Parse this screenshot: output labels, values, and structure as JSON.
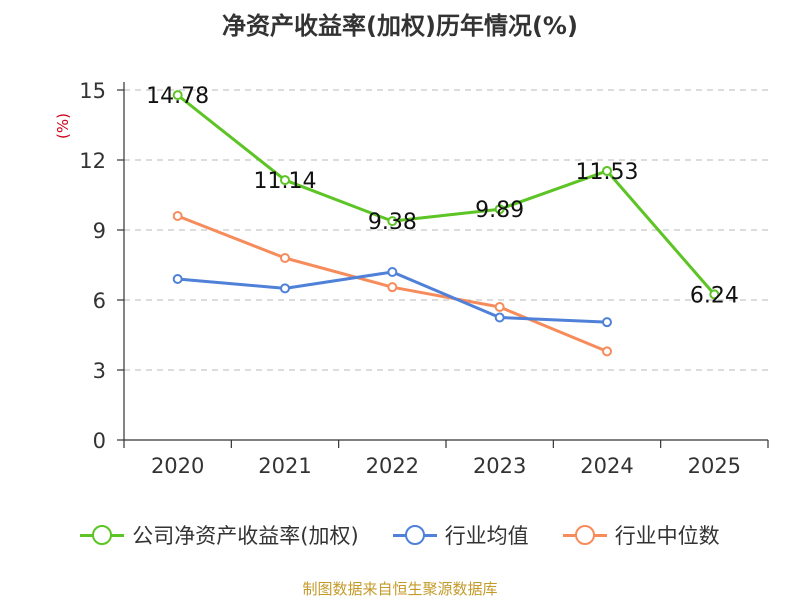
{
  "title": "净资产收益率(加权)历年情况(%)",
  "footer": "制图数据来自恒生聚源数据库",
  "chart_data": {
    "type": "line",
    "title": "净资产收益率(加权)历年情况(%)",
    "ylabel": "(%)",
    "xlabel": "",
    "ylim": [
      0,
      15
    ],
    "yticks": [
      0,
      3,
      6,
      9,
      12,
      15
    ],
    "categories": [
      "2020",
      "2021",
      "2022",
      "2023",
      "2024",
      "2025"
    ],
    "grid": true,
    "legend_position": "bottom",
    "series": [
      {
        "name": "公司净资产收益率(加权)",
        "color": "#5cc424",
        "values": [
          14.78,
          11.14,
          9.38,
          9.89,
          11.53,
          6.24
        ],
        "labels": [
          "14.78",
          "11.14",
          "9.38",
          "9.89",
          "11.53",
          "6.24"
        ]
      },
      {
        "name": "行业均值",
        "color": "#4f81d9",
        "values": [
          6.9,
          6.5,
          7.2,
          5.25,
          5.05,
          null
        ]
      },
      {
        "name": "行业中位数",
        "color": "#f68c5c",
        "values": [
          9.6,
          7.8,
          6.55,
          5.7,
          3.8,
          null
        ]
      }
    ]
  }
}
